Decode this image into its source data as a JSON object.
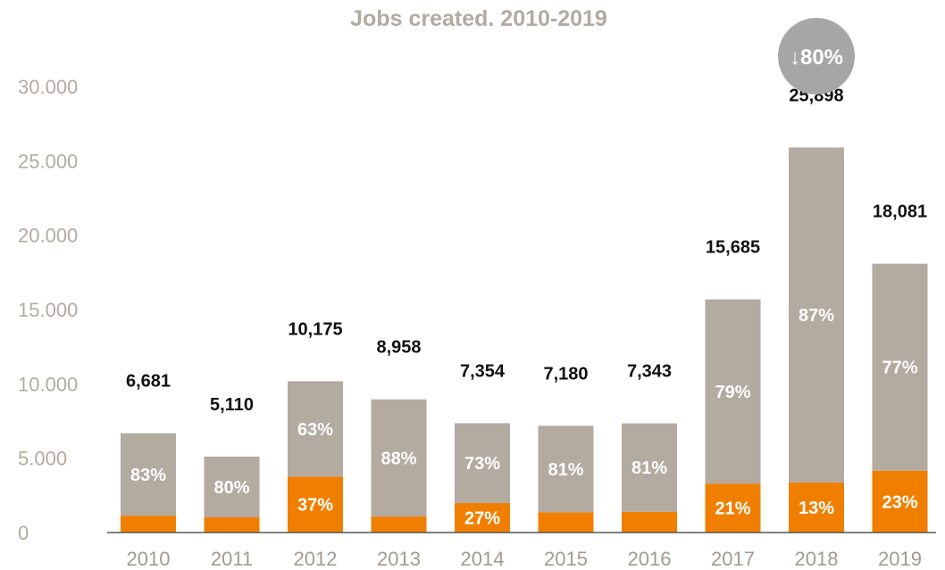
{
  "chart_data": {
    "type": "bar",
    "stacked": true,
    "title": "Jobs created. 2010-2019",
    "categories": [
      "2010",
      "2011",
      "2012",
      "2013",
      "2014",
      "2015",
      "2016",
      "2017",
      "2018",
      "2019"
    ],
    "totals": [
      6681,
      5110,
      10175,
      8958,
      7354,
      7180,
      7343,
      15685,
      25898,
      18081
    ],
    "total_labels": [
      "6,681",
      "5,110",
      "10,175",
      "8,958",
      "7,354",
      "7,180",
      "7,343",
      "15,685",
      "25,898",
      "18,081"
    ],
    "series": [
      {
        "color": "#f07f00",
        "values": [
          1136,
          1022,
          3765,
          1075,
          1986,
          1364,
          1395,
          3294,
          3367,
          4159
        ],
        "labels": [
          "",
          "",
          "37%",
          "",
          "27%",
          "",
          "",
          "21%",
          "13%",
          "23%"
        ]
      },
      {
        "color": "#b3aaa0",
        "values": [
          5545,
          4088,
          6410,
          7883,
          5368,
          5816,
          5948,
          12391,
          22531,
          13922
        ],
        "labels": [
          "83%",
          "80%",
          "63%",
          "88%",
          "73%",
          "81%",
          "81%",
          "79%",
          "87%",
          "77%"
        ]
      }
    ],
    "yticks": [
      "0",
      "5.000",
      "10.000",
      "15.000",
      "20.000",
      "25.000",
      "30.000"
    ],
    "ylim": [
      0,
      30000
    ],
    "grid": false,
    "annotation": {
      "text": "↓80%",
      "category": "2018",
      "color": "#a6a6a6"
    }
  }
}
